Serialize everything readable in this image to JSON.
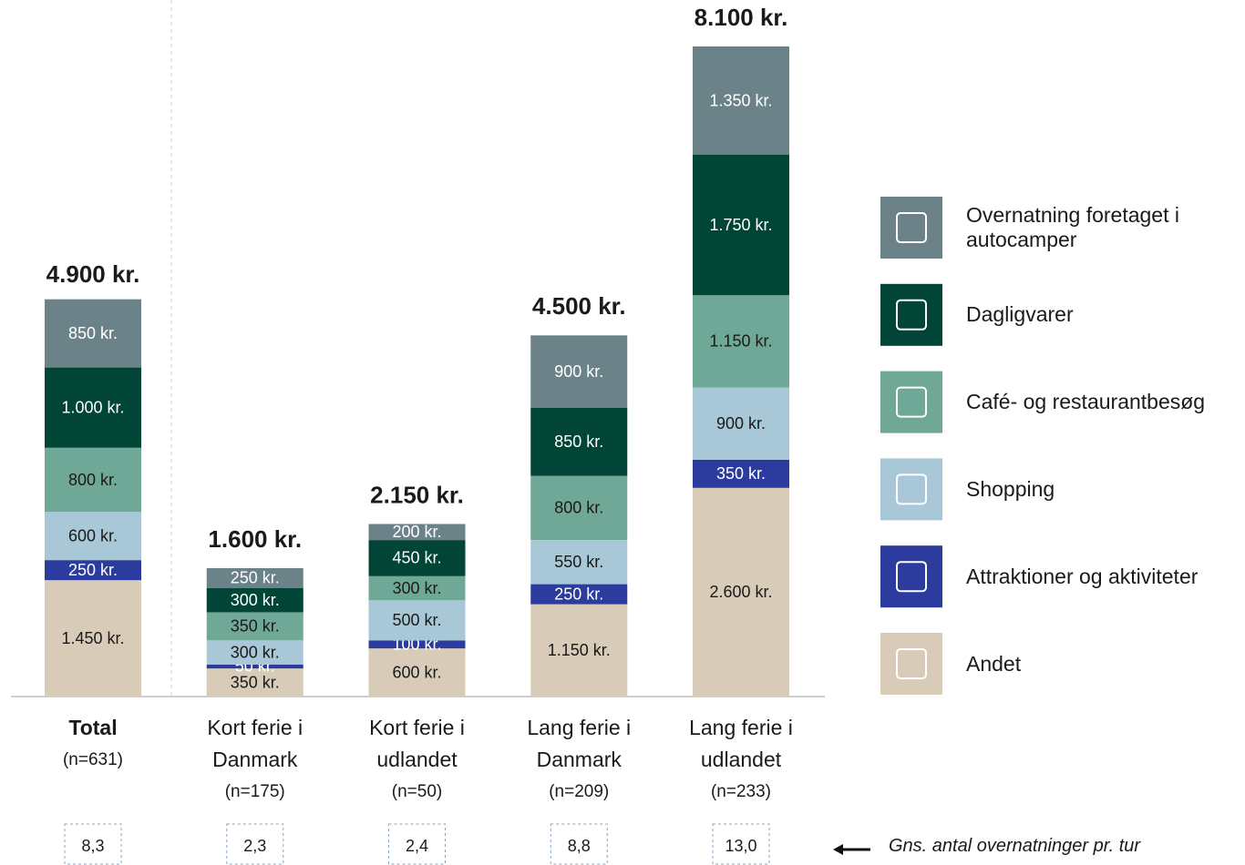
{
  "chart_data": {
    "type": "bar",
    "stacked": true,
    "categories": [
      "Total",
      "Kort ferie i Danmark",
      "Kort ferie i udlandet",
      "Lang ferie i Danmark",
      "Lang ferie i udlandet"
    ],
    "sample_sizes": [
      "(n=631)",
      "(n=175)",
      "(n=50)",
      "(n=209)",
      "(n=233)"
    ],
    "series": [
      {
        "name": "Andet",
        "color": "#d8cbb8",
        "values": [
          1450,
          350,
          600,
          1150,
          2600
        ],
        "value_labels": [
          "1.450 kr.",
          "350 kr.",
          "600 kr.",
          "1.150 kr.",
          "2.600 kr."
        ]
      },
      {
        "name": "Attraktioner og aktiviteter",
        "color": "#2b3c9e",
        "values": [
          250,
          50,
          100,
          250,
          350
        ],
        "value_labels": [
          "250 kr.",
          "50 kr.",
          "100 kr.",
          "250 kr.",
          "350 kr."
        ]
      },
      {
        "name": "Shopping",
        "color": "#a8c8d8",
        "values": [
          600,
          300,
          500,
          550,
          900
        ],
        "value_labels": [
          "600 kr.",
          "300 kr.",
          "500 kr.",
          "550 kr.",
          "900 kr."
        ]
      },
      {
        "name": "Café- og restaurantbesøg",
        "color": "#70a898",
        "values": [
          800,
          350,
          300,
          800,
          1150
        ],
        "value_labels": [
          "800 kr.",
          "350 kr.",
          "300 kr.",
          "800 kr.",
          "1.150 kr."
        ]
      },
      {
        "name": "Dagligvarer",
        "color": "#004535",
        "values": [
          1000,
          300,
          450,
          850,
          1750
        ],
        "value_labels": [
          "1.000 kr.",
          "300 kr.",
          "450 kr.",
          "850 kr.",
          "1.750 kr."
        ]
      },
      {
        "name": "Overnatning foretaget i autocamper",
        "color": "#6b8289",
        "values": [
          850,
          250,
          200,
          900,
          1350
        ],
        "value_labels": [
          "850 kr.",
          "250 kr.",
          "200 kr.",
          "900 kr.",
          "1.350 kr."
        ]
      }
    ],
    "totals": {
      "values": [
        4900,
        1600,
        2150,
        4500,
        8100
      ],
      "value_labels": [
        "4.900 kr.",
        "1.600 kr.",
        "2.150 kr.",
        "4.500 kr.",
        "8.100 kr."
      ]
    },
    "nights": {
      "values": [
        8.3,
        2.3,
        2.4,
        8.8,
        13.0
      ],
      "value_labels": [
        "8,3",
        "2,3",
        "2,4",
        "8,8",
        "13,0"
      ]
    },
    "annotation": "Gns. antal overnatninger pr. tur",
    "legend": "right"
  }
}
